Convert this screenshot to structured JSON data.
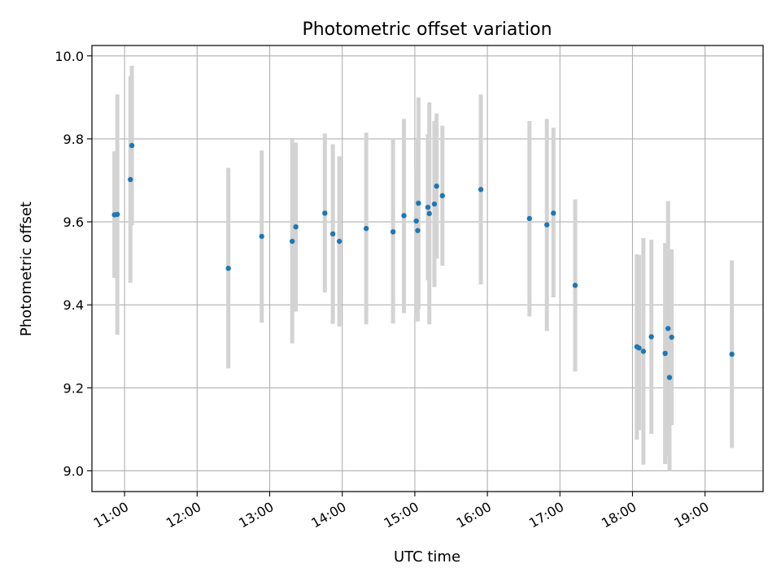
{
  "chart_data": {
    "type": "scatter",
    "title": "Photometric offset variation",
    "xlabel": "UTC time",
    "ylabel": "Photometric offset",
    "x_unit": "UTC hour of day",
    "xlim": [
      10.55,
      19.8
    ],
    "ylim": [
      8.95,
      10.025
    ],
    "x_ticks": [
      {
        "value": 11,
        "label": "11:00"
      },
      {
        "value": 12,
        "label": "12:00"
      },
      {
        "value": 13,
        "label": "13:00"
      },
      {
        "value": 14,
        "label": "14:00"
      },
      {
        "value": 15,
        "label": "15:00"
      },
      {
        "value": 16,
        "label": "16:00"
      },
      {
        "value": 17,
        "label": "17:00"
      },
      {
        "value": 18,
        "label": "18:00"
      },
      {
        "value": 19,
        "label": "19:00"
      }
    ],
    "y_ticks": [
      {
        "value": 9.0,
        "label": "9.0"
      },
      {
        "value": 9.2,
        "label": "9.2"
      },
      {
        "value": 9.4,
        "label": "9.4"
      },
      {
        "value": 9.6,
        "label": "9.6"
      },
      {
        "value": 9.8,
        "label": "9.8"
      },
      {
        "value": 10.0,
        "label": "10.0"
      }
    ],
    "grid": true,
    "colors": {
      "point": "#1f77b4",
      "errorbar": "#d3d3d3",
      "grid": "#b0b0b0",
      "axes": "#000000"
    },
    "points": [
      {
        "x": 10.86,
        "y": 9.617,
        "err_low": 9.465,
        "err_high": 9.77
      },
      {
        "x": 10.9,
        "y": 9.618,
        "err_low": 9.328,
        "err_high": 9.907
      },
      {
        "x": 11.08,
        "y": 9.702,
        "err_low": 9.453,
        "err_high": 9.951
      },
      {
        "x": 11.1,
        "y": 9.784,
        "err_low": 9.592,
        "err_high": 9.976
      },
      {
        "x": 12.43,
        "y": 9.488,
        "err_low": 9.247,
        "err_high": 9.73
      },
      {
        "x": 12.89,
        "y": 9.565,
        "err_low": 9.357,
        "err_high": 9.772
      },
      {
        "x": 13.31,
        "y": 9.553,
        "err_low": 9.307,
        "err_high": 9.798
      },
      {
        "x": 13.36,
        "y": 9.588,
        "err_low": 9.384,
        "err_high": 9.791
      },
      {
        "x": 13.76,
        "y": 9.621,
        "err_low": 9.43,
        "err_high": 9.813
      },
      {
        "x": 13.87,
        "y": 9.571,
        "err_low": 9.354,
        "err_high": 9.787
      },
      {
        "x": 13.96,
        "y": 9.553,
        "err_low": 9.348,
        "err_high": 9.758
      },
      {
        "x": 14.33,
        "y": 9.584,
        "err_low": 9.353,
        "err_high": 9.815
      },
      {
        "x": 14.7,
        "y": 9.576,
        "err_low": 9.355,
        "err_high": 9.8
      },
      {
        "x": 14.85,
        "y": 9.615,
        "err_low": 9.38,
        "err_high": 9.848
      },
      {
        "x": 15.02,
        "y": 9.602,
        "err_low": 9.37,
        "err_high": 9.73
      },
      {
        "x": 15.04,
        "y": 9.579,
        "err_low": 9.36,
        "err_high": 9.8
      },
      {
        "x": 15.05,
        "y": 9.645,
        "err_low": 9.39,
        "err_high": 9.9
      },
      {
        "x": 15.18,
        "y": 9.635,
        "err_low": 9.459,
        "err_high": 9.811
      },
      {
        "x": 15.2,
        "y": 9.62,
        "err_low": 9.353,
        "err_high": 9.888
      },
      {
        "x": 15.27,
        "y": 9.643,
        "err_low": 9.443,
        "err_high": 9.843
      },
      {
        "x": 15.3,
        "y": 9.686,
        "err_low": 9.511,
        "err_high": 9.861
      },
      {
        "x": 15.38,
        "y": 9.663,
        "err_low": 9.494,
        "err_high": 9.832
      },
      {
        "x": 15.91,
        "y": 9.678,
        "err_low": 9.449,
        "err_high": 9.907
      },
      {
        "x": 16.58,
        "y": 9.608,
        "err_low": 9.372,
        "err_high": 9.843
      },
      {
        "x": 16.82,
        "y": 9.593,
        "err_low": 9.337,
        "err_high": 9.848
      },
      {
        "x": 16.91,
        "y": 9.621,
        "err_low": 9.418,
        "err_high": 9.827
      },
      {
        "x": 17.21,
        "y": 9.447,
        "err_low": 9.239,
        "err_high": 9.654
      },
      {
        "x": 18.06,
        "y": 9.299,
        "err_low": 9.075,
        "err_high": 9.522
      },
      {
        "x": 18.09,
        "y": 9.296,
        "err_low": 9.098,
        "err_high": 9.52
      },
      {
        "x": 18.15,
        "y": 9.288,
        "err_low": 9.015,
        "err_high": 9.561
      },
      {
        "x": 18.26,
        "y": 9.323,
        "err_low": 9.089,
        "err_high": 9.557
      },
      {
        "x": 18.45,
        "y": 9.283,
        "err_low": 9.016,
        "err_high": 9.549
      },
      {
        "x": 18.49,
        "y": 9.343,
        "err_low": 9.037,
        "err_high": 9.65
      },
      {
        "x": 18.51,
        "y": 9.225,
        "err_low": 9.0,
        "err_high": 9.53
      },
      {
        "x": 18.54,
        "y": 9.322,
        "err_low": 9.11,
        "err_high": 9.534
      },
      {
        "x": 19.37,
        "y": 9.281,
        "err_low": 9.055,
        "err_high": 9.507
      }
    ]
  }
}
